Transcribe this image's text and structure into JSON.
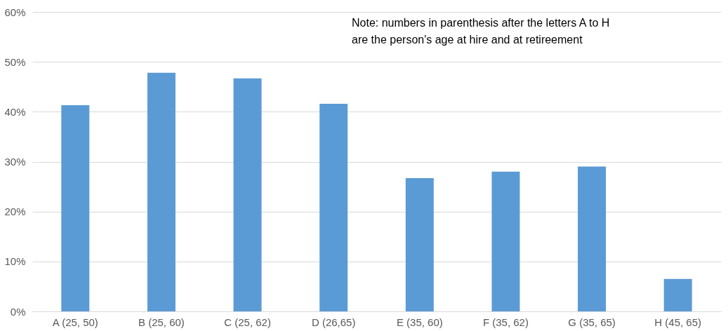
{
  "chart_data": {
    "type": "bar",
    "categories": [
      "A (25, 50)",
      "B (25, 60)",
      "C (25, 62)",
      "D (26,65)",
      "E (35, 60)",
      "F (35, 62)",
      "G (35, 65)",
      "H (45, 65)"
    ],
    "values": [
      41.3,
      47.8,
      46.7,
      41.6,
      26.7,
      28.0,
      29.0,
      6.5
    ],
    "color": "#5b9bd5",
    "ylim": [
      0,
      60
    ],
    "yticks": [
      {
        "value": 0,
        "label": "0%"
      },
      {
        "value": 10,
        "label": "10%"
      },
      {
        "value": 20,
        "label": "20%"
      },
      {
        "value": 30,
        "label": "30%"
      },
      {
        "value": 40,
        "label": "40%"
      },
      {
        "value": 50,
        "label": "50%"
      },
      {
        "value": 60,
        "label": "60%"
      }
    ],
    "grid": "y",
    "annotations": [
      "Note: numbers in parenthesis after the letters A to H\nare the person's age at hire and at retireement"
    ]
  }
}
